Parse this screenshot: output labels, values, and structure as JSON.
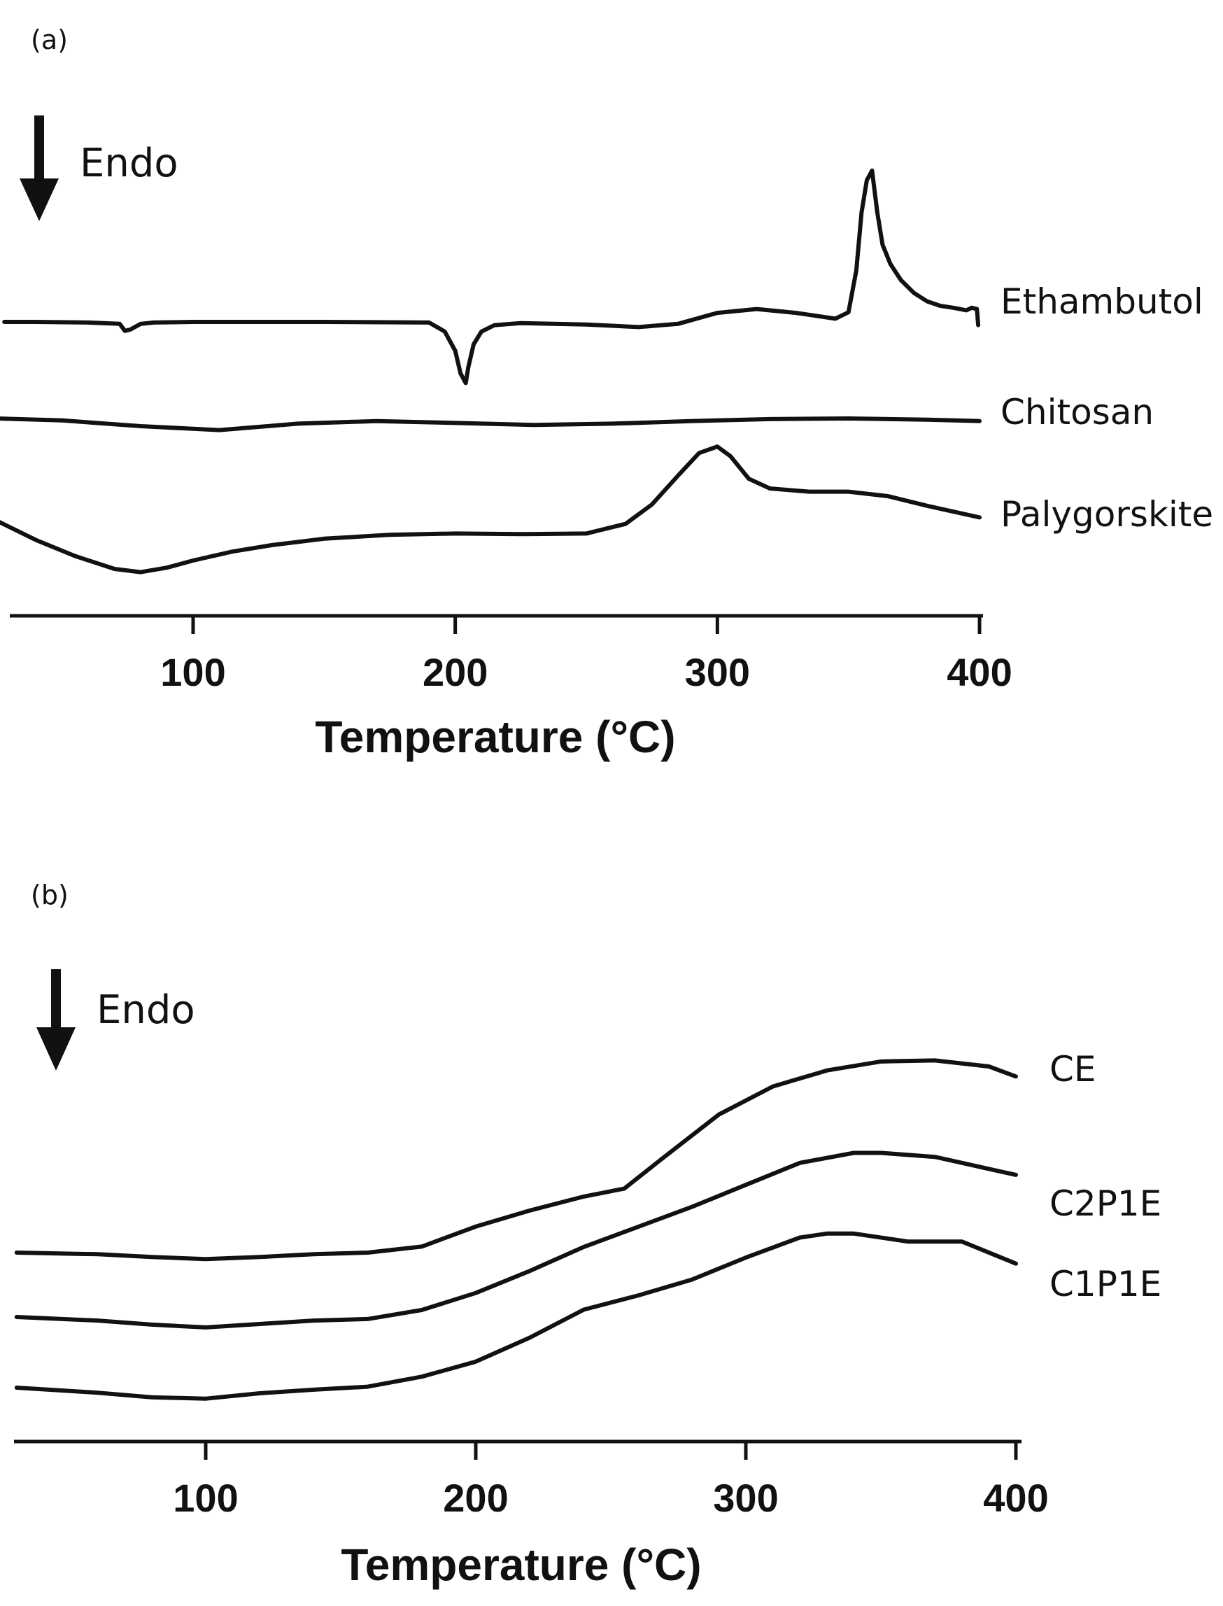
{
  "chart_data": [
    {
      "panel": "(a)",
      "type": "line",
      "title": "",
      "xlabel": "Temperature (°C)",
      "ylabel": "",
      "xlim": [
        25,
        400
      ],
      "xticks": [
        100,
        200,
        300,
        400
      ],
      "tick_labels": [
        "100",
        "200",
        "300",
        "400"
      ],
      "annotation": "Endo",
      "legend": "labels at right end of each curve",
      "series": [
        {
          "name": "Ethambutol",
          "x": [
            28,
            40,
            60,
            72,
            74,
            76,
            80,
            85,
            100,
            150,
            190,
            196,
            200,
            202,
            204,
            205,
            207,
            210,
            215,
            225,
            250,
            270,
            285,
            300,
            315,
            330,
            345,
            350,
            353,
            355,
            357,
            359,
            361,
            363,
            366,
            370,
            375,
            380,
            385,
            390,
            395,
            397,
            399,
            399.5
          ],
          "y": [
            0,
            0,
            -0.1,
            -0.3,
            -1.4,
            -1.2,
            -0.3,
            -0.1,
            0,
            0,
            -0.1,
            -1.5,
            -4.5,
            -8,
            -9.5,
            -7,
            -3.5,
            -1.5,
            -0.5,
            -0.2,
            -0.4,
            -0.8,
            -0.3,
            1.4,
            2.0,
            1.4,
            0.5,
            1.5,
            8,
            17,
            22,
            23.5,
            17,
            12,
            9,
            6.5,
            4.5,
            3.2,
            2.5,
            2.2,
            1.8,
            2.2,
            2.0,
            -0.5
          ]
        },
        {
          "name": "Chitosan",
          "x": [
            25,
            50,
            80,
            110,
            140,
            170,
            200,
            230,
            260,
            290,
            320,
            350,
            380,
            400
          ],
          "y": [
            0,
            -0.3,
            -1.2,
            -1.8,
            -0.8,
            -0.4,
            -0.7,
            -1.0,
            -0.8,
            -0.4,
            -0.1,
            0,
            -0.2,
            -0.4
          ]
        },
        {
          "name": "Palygorskite",
          "x": [
            25,
            40,
            55,
            70,
            80,
            90,
            100,
            115,
            130,
            150,
            175,
            200,
            225,
            250,
            265,
            275,
            285,
            293,
            300,
            305,
            312,
            320,
            335,
            350,
            365,
            380,
            400
          ],
          "y": [
            0,
            -3,
            -5.5,
            -7.5,
            -8,
            -7.3,
            -6.2,
            -4.8,
            -3.8,
            -2.8,
            -2.2,
            -2.0,
            -2.1,
            -2.0,
            -0.5,
            2.5,
            7,
            10.5,
            11.5,
            10,
            6.5,
            5,
            4.5,
            4.5,
            3.8,
            2.3,
            0.5
          ]
        }
      ]
    },
    {
      "panel": "(b)",
      "type": "line",
      "title": "",
      "xlabel": "Temperature (°C)",
      "ylabel": "",
      "xlim": [
        30,
        400
      ],
      "xticks": [
        100,
        200,
        300,
        400
      ],
      "tick_labels": [
        "100",
        "200",
        "300",
        "400"
      ],
      "annotation": "Endo",
      "legend": "labels at right end of each curve",
      "series": [
        {
          "name": "CE",
          "x": [
            30,
            60,
            80,
            100,
            120,
            140,
            160,
            180,
            200,
            220,
            240,
            255,
            270,
            290,
            310,
            330,
            350,
            370,
            390,
            400
          ],
          "y": [
            0,
            -0.8,
            -2.2,
            -3.2,
            -2.2,
            -0.8,
            0,
            3,
            13,
            21,
            28,
            32,
            48,
            69,
            83,
            91,
            95.5,
            96,
            93,
            88
          ]
        },
        {
          "name": "C2P1E",
          "x": [
            30,
            60,
            80,
            100,
            120,
            140,
            160,
            180,
            200,
            220,
            240,
            260,
            280,
            300,
            320,
            340,
            350,
            370,
            390,
            400
          ],
          "y": [
            0,
            -1.8,
            -3.8,
            -5.2,
            -3.5,
            -1.8,
            -1,
            3.5,
            12,
            23,
            35,
            45,
            55,
            66,
            77,
            82,
            82,
            80,
            74,
            71
          ]
        },
        {
          "name": "C1P1E",
          "x": [
            30,
            60,
            80,
            100,
            120,
            140,
            160,
            180,
            200,
            220,
            240,
            260,
            280,
            300,
            320,
            330,
            340,
            360,
            380,
            400
          ],
          "y": [
            0,
            -2.5,
            -4.8,
            -5.5,
            -2.8,
            -1,
            0.5,
            5.5,
            13,
            25,
            39,
            46,
            54,
            65,
            75,
            77,
            77,
            73,
            73,
            62
          ]
        }
      ]
    }
  ]
}
